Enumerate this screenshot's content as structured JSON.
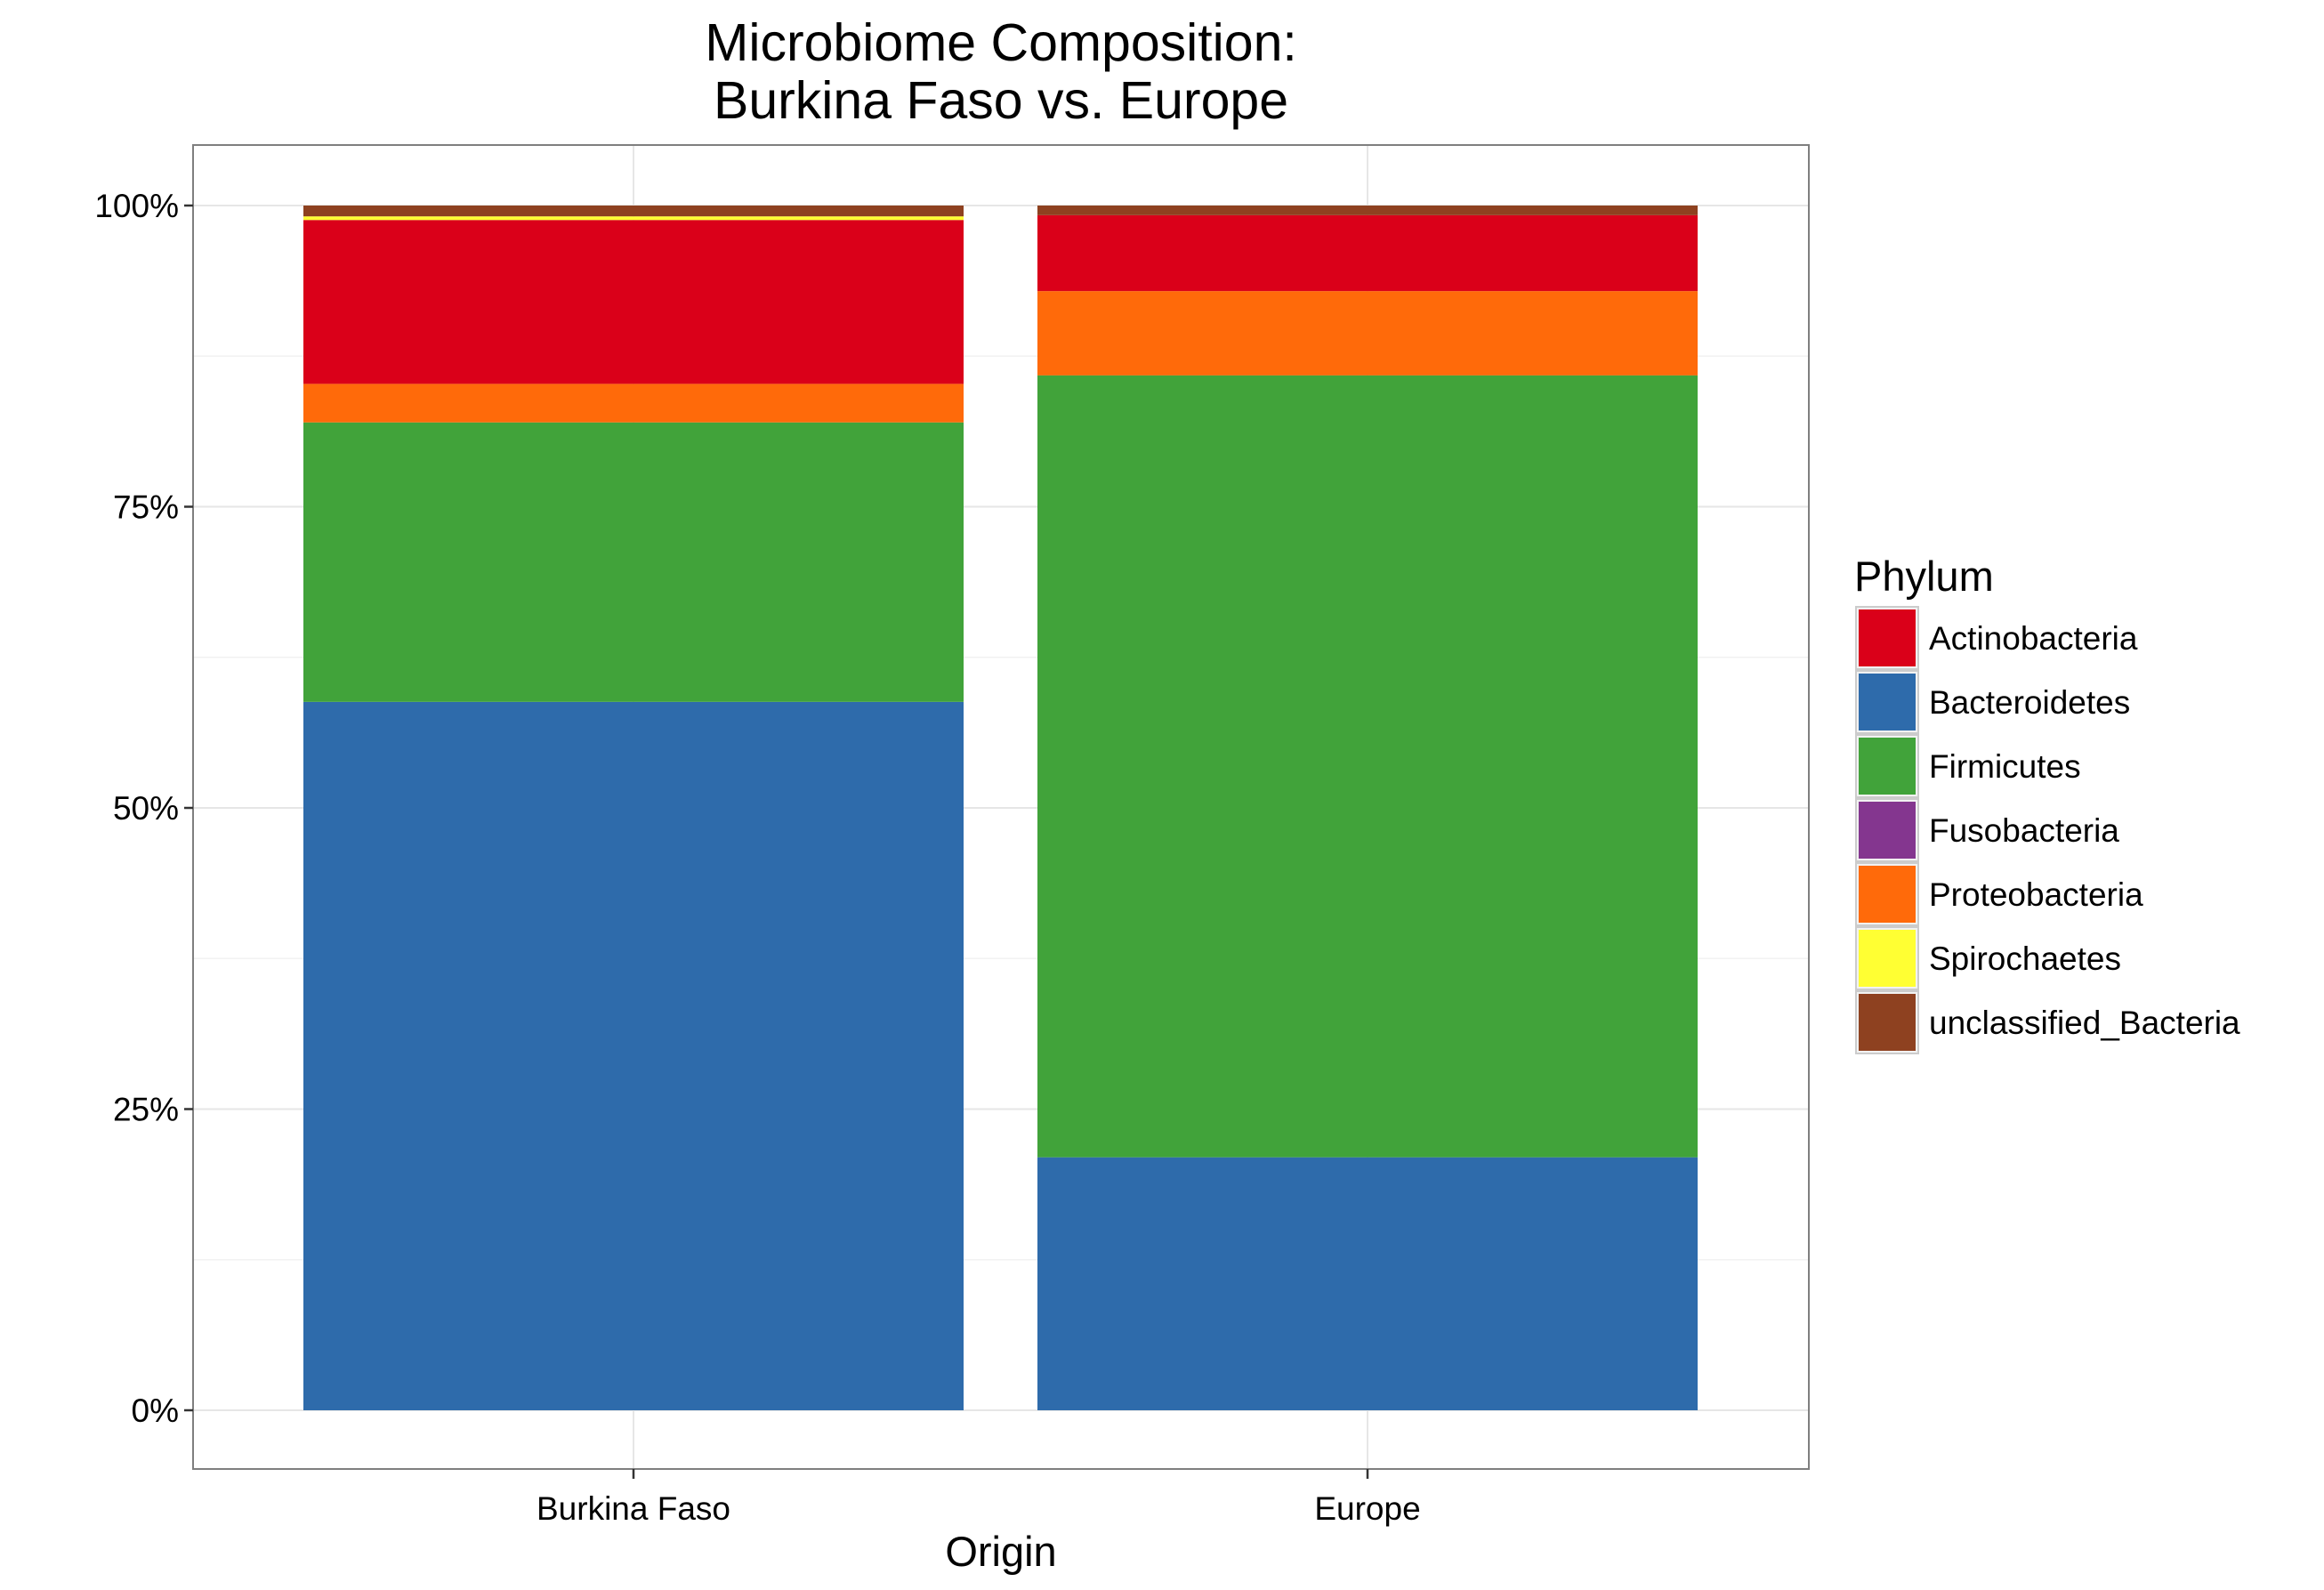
{
  "chart_data": {
    "type": "bar",
    "stacked": true,
    "title_lines": [
      "Microbiome Composition:",
      "Burkina Faso vs. Europe"
    ],
    "xlabel": "Origin",
    "ylabel": "",
    "categories": [
      "Burkina Faso",
      "Europe"
    ],
    "ylim": [
      0,
      1
    ],
    "y_ticks": [
      0,
      0.25,
      0.5,
      0.75,
      1
    ],
    "y_tick_labels": [
      "0%",
      "25%",
      "50%",
      "75%",
      "100%"
    ],
    "grid": true,
    "legend_title": "Phylum",
    "legend_position": "right",
    "series": [
      {
        "name": "Bacteroidetes",
        "color": "#2E6BAB",
        "values": [
          0.588,
          0.21
        ]
      },
      {
        "name": "Firmicutes",
        "color": "#41A33A",
        "values": [
          0.232,
          0.649
        ]
      },
      {
        "name": "Fusobacteria",
        "color": "#84368F",
        "values": [
          0.0,
          0.0
        ]
      },
      {
        "name": "Proteobacteria",
        "color": "#FF6A0A",
        "values": [
          0.032,
          0.07
        ]
      },
      {
        "name": "Actinobacteria",
        "color": "#DA0019",
        "values": [
          0.136,
          0.063
        ]
      },
      {
        "name": "Spirochaetes",
        "color": "#FFFF33",
        "values": [
          0.003,
          0.0
        ]
      },
      {
        "name": "unclassified_Bacteria",
        "color": "#8E4120",
        "values": [
          0.009,
          0.008
        ]
      }
    ],
    "legend_order": [
      "Actinobacteria",
      "Bacteroidetes",
      "Firmicutes",
      "Fusobacteria",
      "Proteobacteria",
      "Spirochaetes",
      "unclassified_Bacteria"
    ]
  }
}
